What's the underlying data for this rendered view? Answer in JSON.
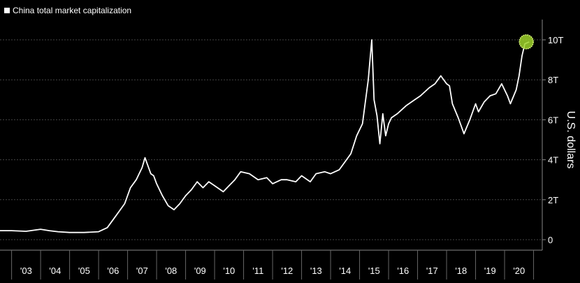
{
  "chart_data": {
    "type": "line",
    "title": "",
    "ylabel": "U.S. dollars",
    "xlabel": "",
    "ylim": [
      0,
      11
    ],
    "y_ticks": [
      0,
      2,
      4,
      6,
      8,
      10
    ],
    "y_tick_labels": [
      "0",
      "2T",
      "4T",
      "6T",
      "8T",
      "10T"
    ],
    "x_categories": [
      "'03",
      "'04",
      "'05",
      "'06",
      "'07",
      "'08",
      "'09",
      "'10",
      "'11",
      "'12",
      "'13",
      "'14",
      "'15",
      "'16",
      "'17",
      "'18",
      "'19",
      "'20"
    ],
    "grid": true,
    "legend_position": "top-left",
    "colors": {
      "background": "#000000",
      "line": "#ffffff",
      "grid": "#444444",
      "highlight": "#9fd42a"
    },
    "series": [
      {
        "name": "China total market capitalization",
        "x": [
          2002.6,
          2003.0,
          2003.5,
          2004.0,
          2004.3,
          2004.6,
          2005.0,
          2005.5,
          2006.0,
          2006.3,
          2006.6,
          2006.9,
          2007.1,
          2007.3,
          2007.5,
          2007.6,
          2007.8,
          2007.9,
          2008.0,
          2008.2,
          2008.4,
          2008.6,
          2008.8,
          2009.0,
          2009.2,
          2009.4,
          2009.6,
          2009.8,
          2010.0,
          2010.3,
          2010.5,
          2010.7,
          2010.9,
          2011.2,
          2011.5,
          2011.8,
          2012.0,
          2012.3,
          2012.5,
          2012.8,
          2013.0,
          2013.3,
          2013.5,
          2013.8,
          2014.0,
          2014.3,
          2014.5,
          2014.7,
          2014.9,
          2015.1,
          2015.3,
          2015.42,
          2015.5,
          2015.6,
          2015.7,
          2015.8,
          2015.9,
          2016.0,
          2016.1,
          2016.3,
          2016.6,
          2016.9,
          2017.1,
          2017.4,
          2017.6,
          2017.8,
          2018.0,
          2018.1,
          2018.2,
          2018.4,
          2018.6,
          2018.8,
          2019.0,
          2019.1,
          2019.3,
          2019.5,
          2019.7,
          2019.9,
          2020.1,
          2020.2,
          2020.4,
          2020.5,
          2020.6,
          2020.7,
          2020.85
        ],
        "y": [
          0.45,
          0.45,
          0.42,
          0.52,
          0.45,
          0.4,
          0.36,
          0.36,
          0.4,
          0.6,
          1.2,
          1.8,
          2.6,
          3.0,
          3.6,
          4.1,
          3.3,
          3.2,
          2.8,
          2.2,
          1.7,
          1.5,
          1.8,
          2.2,
          2.5,
          2.9,
          2.6,
          2.9,
          2.7,
          2.4,
          2.7,
          3.0,
          3.4,
          3.3,
          3.0,
          3.1,
          2.8,
          3.0,
          3.0,
          2.9,
          3.2,
          2.9,
          3.3,
          3.4,
          3.3,
          3.5,
          3.9,
          4.3,
          5.2,
          5.8,
          8.0,
          10.0,
          7.0,
          6.2,
          4.8,
          6.3,
          5.2,
          5.8,
          6.1,
          6.3,
          6.7,
          7.0,
          7.2,
          7.6,
          7.8,
          8.2,
          7.8,
          7.7,
          6.8,
          6.1,
          5.3,
          6.0,
          6.8,
          6.4,
          6.9,
          7.2,
          7.3,
          7.8,
          7.2,
          6.8,
          7.5,
          8.2,
          9.2,
          9.8,
          9.9
        ]
      }
    ],
    "highlight_point": {
      "x": 2020.75,
      "y": 9.9
    }
  }
}
